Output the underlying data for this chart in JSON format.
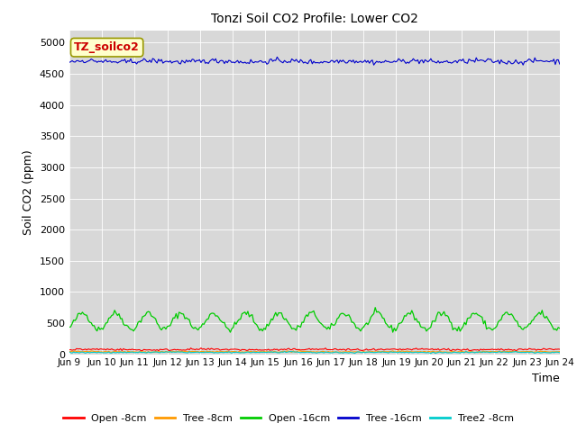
{
  "title": "Tonzi Soil CO2 Profile: Lower CO2",
  "xlabel": "Time",
  "ylabel": "Soil CO2 (ppm)",
  "ylim": [
    0,
    5200
  ],
  "yticks": [
    0,
    500,
    1000,
    1500,
    2000,
    2500,
    3000,
    3500,
    4000,
    4500,
    5000
  ],
  "legend_label": "TZ_soilco2",
  "legend_label_color": "#cc0000",
  "legend_label_bg": "#ffffcc",
  "bg_color": "#d8d8d8",
  "series": {
    "open_8cm": {
      "color": "#ff0000",
      "label": "Open -8cm"
    },
    "tree_8cm": {
      "color": "#ff9900",
      "label": "Tree -8cm"
    },
    "open_16cm": {
      "color": "#00cc00",
      "label": "Open -16cm"
    },
    "tree_16cm": {
      "color": "#0000cc",
      "label": "Tree -16cm"
    },
    "tree2_8cm": {
      "color": "#00cccc",
      "label": "Tree2 -8cm"
    }
  },
  "n_points": 336,
  "x_start": 9,
  "x_end": 24,
  "xtick_positions": [
    9,
    10,
    11,
    12,
    13,
    14,
    15,
    16,
    17,
    18,
    19,
    20,
    21,
    22,
    23,
    24
  ],
  "xtick_labels": [
    "Jun 9",
    "Jun 10",
    "Jun 11",
    "Jun 12",
    "Jun 13",
    "Jun 14",
    "Jun 15",
    "Jun 16",
    "Jun 17",
    "Jun 18",
    "Jun 19",
    "Jun 20",
    "Jun 21",
    "Jun 22",
    "Jun 23",
    "Jun 24"
  ]
}
